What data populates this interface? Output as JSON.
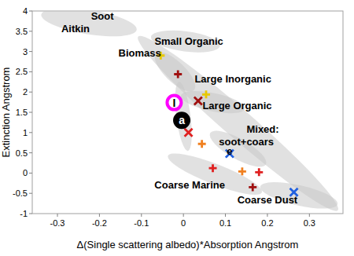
{
  "chart_data": {
    "type": "scatter",
    "x_label": "Δ(Single scattering albedo)*Absorption Angstrom",
    "y_label": "Extinction Angstrom",
    "xlim": [
      -0.36,
      0.38
    ],
    "ylim": [
      -1,
      4
    ],
    "xticks": [
      -0.3,
      -0.2,
      -0.1,
      0,
      0.1,
      0.2,
      0.3
    ],
    "yticks": [
      -1,
      -0.5,
      0,
      0.5,
      1,
      1.5,
      2,
      2.5,
      3,
      3.5,
      4
    ],
    "grid": false,
    "series": [
      {
        "color": "#e8c800",
        "marker": "plus",
        "x": [
          -0.054,
          0.054
        ],
        "values": [
          2.9,
          1.94
        ]
      },
      {
        "color": "#a01010",
        "marker": "plus",
        "x": [
          -0.013,
          0.165
        ],
        "values": [
          2.44,
          -0.35
        ]
      },
      {
        "color": "#a01010",
        "marker": "x",
        "x": [
          0.035
        ],
        "values": [
          1.78
        ]
      },
      {
        "color": "#e02020",
        "marker": "plus",
        "x": [
          0.07,
          0.18
        ],
        "values": [
          0.12,
          0.02
        ]
      },
      {
        "color": "#e02020",
        "marker": "x",
        "x": [
          0.012
        ],
        "values": [
          1.0
        ]
      },
      {
        "color": "#f08020",
        "marker": "plus",
        "x": [
          0.044,
          0.14
        ],
        "values": [
          0.72,
          0.04
        ]
      },
      {
        "color": "#2060e0",
        "marker": "x",
        "x": [
          0.11,
          0.263
        ],
        "values": [
          0.48,
          -0.47
        ]
      }
    ],
    "regions": [
      {
        "from": [
          -0.33,
          3.9
        ],
        "to": [
          -0.12,
          3.55
        ],
        "width": 0.6
      },
      {
        "from": [
          -0.1,
          3.3
        ],
        "to": [
          0.36,
          -0.85
        ],
        "width": 0.7
      },
      {
        "from": [
          -0.07,
          3.35
        ],
        "to": [
          0.08,
          3.15
        ],
        "width": 0.5
      },
      {
        "from": [
          -0.06,
          2.9
        ],
        "to": [
          0.02,
          2.1
        ],
        "width": 0.5
      },
      {
        "from": [
          0.0,
          1.9
        ],
        "to": [
          0.14,
          1.6
        ],
        "width": 0.45
      },
      {
        "from": [
          0.07,
          0.95
        ],
        "to": [
          0.19,
          0.25
        ],
        "width": 0.5
      },
      {
        "from": [
          -0.03,
          0.4
        ],
        "to": [
          0.18,
          -0.45
        ],
        "width": 0.5
      },
      {
        "from": [
          0.19,
          -0.35
        ],
        "to": [
          0.36,
          -0.75
        ],
        "width": 0.5
      },
      {
        "from": [
          -0.01,
          2.2
        ],
        "to": [
          0.01,
          0.6
        ],
        "width": 0.35
      }
    ],
    "labels": [
      {
        "text": "Aitkin",
        "x": -0.257,
        "y": 3.58
      },
      {
        "text": "Soot",
        "x": -0.193,
        "y": 3.88
      },
      {
        "text": "Small Organic",
        "x": 0.013,
        "y": 3.26
      },
      {
        "text": "Biomass",
        "x": -0.104,
        "y": 2.98
      },
      {
        "text": "Large Inorganic",
        "x": 0.118,
        "y": 2.34
      },
      {
        "text": "Large Organic",
        "x": 0.128,
        "y": 1.67
      },
      {
        "text": "Mixed:",
        "x": 0.189,
        "y": 1.09
      },
      {
        "text": "soot+coars",
        "x": 0.15,
        "y": 0.78
      },
      {
        "text": "e",
        "x": 0.11,
        "y": 0.56
      },
      {
        "text": "Coarse Marine",
        "x": 0.015,
        "y": -0.29
      },
      {
        "text": "Coarse Dust",
        "x": 0.2,
        "y": -0.66
      }
    ],
    "annotations": [
      {
        "label": "I",
        "x": -0.022,
        "y": 1.74,
        "color": "#ff00ff"
      },
      {
        "label": "a",
        "x": -0.004,
        "y": 1.3,
        "color": "#000000"
      }
    ]
  }
}
